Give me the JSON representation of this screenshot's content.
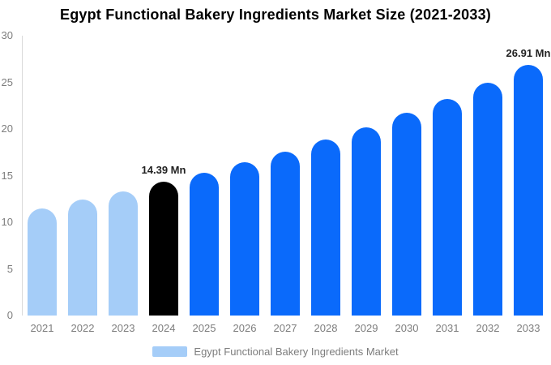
{
  "title": "Egypt Functional Bakery Ingredients Market Size (2021-2033)",
  "chart_data": {
    "type": "bar",
    "categories": [
      "2021",
      "2022",
      "2023",
      "2024",
      "2025",
      "2026",
      "2027",
      "2028",
      "2029",
      "2030",
      "2031",
      "2032",
      "2033"
    ],
    "values": [
      11.5,
      12.4,
      13.3,
      14.39,
      15.3,
      16.4,
      17.6,
      18.9,
      20.2,
      21.7,
      23.2,
      25.0,
      26.91
    ],
    "bar_colors": [
      "#a5cdf8",
      "#a5cdf8",
      "#a5cdf8",
      "#000000",
      "#0a6afb",
      "#0a6afb",
      "#0a6afb",
      "#0a6afb",
      "#0a6afb",
      "#0a6afb",
      "#0a6afb",
      "#0a6afb",
      "#0a6afb"
    ],
    "segment_colors": {
      "historical": "#a5cdf8",
      "base_year": "#000000",
      "forecast": "#0a6afb"
    },
    "annotations": [
      {
        "category": "2024",
        "text": "14.39 Mn"
      },
      {
        "category": "2033",
        "text": "26.91 Mn"
      }
    ],
    "xlabel": "",
    "ylabel": "",
    "ylim": [
      0,
      30
    ],
    "yticks": [
      0,
      5,
      10,
      15,
      20,
      25,
      30
    ],
    "grid": false,
    "axis_color": "#d9d9d9",
    "tick_label_color": "#7d7d7d",
    "legend": {
      "label": "Egypt Functional Bakery Ingredients Market",
      "swatch_color": "#a5cdf8",
      "position": "bottom"
    }
  }
}
